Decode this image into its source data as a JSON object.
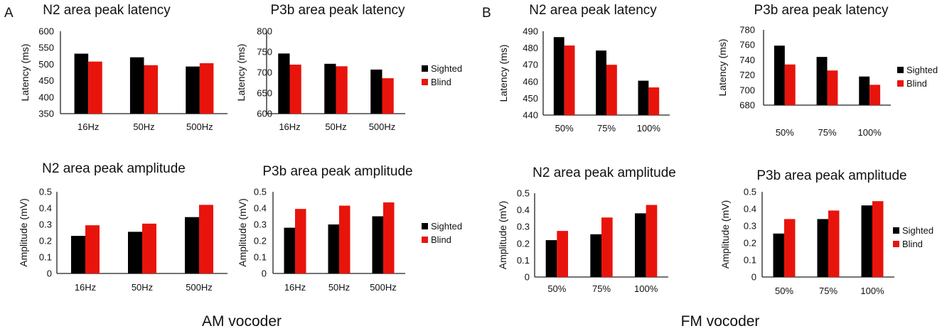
{
  "colors": {
    "sighted": "#000000",
    "blind": "#e8140c",
    "axis": "#222222"
  },
  "panel_labels": {
    "am": "A",
    "fm": "B"
  },
  "footers": {
    "am": "AM vocoder",
    "fm": "FM vocoder"
  },
  "legend_labels": {
    "sighted": "Sighted",
    "blind": "Blind"
  },
  "chart_data": [
    {
      "id": "am-n2-latency",
      "type": "bar",
      "title": "N2 area peak latency",
      "ylabel": "Latency (ms)",
      "xlabel": "",
      "categories": [
        "16Hz",
        "50Hz",
        "500Hz"
      ],
      "ylim": [
        350,
        600
      ],
      "yticks": [
        "350",
        "400",
        "450",
        "500",
        "550",
        "600"
      ],
      "series": [
        {
          "name": "Sighted",
          "values": [
            532,
            521,
            493
          ]
        },
        {
          "name": "Blind",
          "values": [
            508,
            497,
            503
          ]
        }
      ],
      "legend": false
    },
    {
      "id": "am-p3b-latency",
      "type": "bar",
      "title": "P3b area peak latency",
      "ylabel": "Latency (ms)",
      "xlabel": "",
      "categories": [
        "16Hz",
        "50Hz",
        "500Hz"
      ],
      "ylim": [
        600,
        800
      ],
      "yticks": [
        "600",
        "650",
        "700",
        "750",
        "800"
      ],
      "series": [
        {
          "name": "Sighted",
          "values": [
            746,
            721,
            707
          ]
        },
        {
          "name": "Blind",
          "values": [
            719,
            715,
            686
          ]
        }
      ],
      "legend": true
    },
    {
      "id": "fm-n2-latency",
      "type": "bar",
      "title": "N2 area peak latency",
      "ylabel": "Latency (ms)",
      "xlabel": "",
      "categories": [
        "50%",
        "75%",
        "100%"
      ],
      "ylim": [
        440,
        490
      ],
      "yticks": [
        "440",
        "450",
        "460",
        "470",
        "480",
        "490"
      ],
      "series": [
        {
          "name": "Sighted",
          "values": [
            486.5,
            478.5,
            460.5
          ]
        },
        {
          "name": "Blind",
          "values": [
            481.5,
            470,
            456.5
          ]
        }
      ],
      "legend": false
    },
    {
      "id": "fm-p3b-latency",
      "type": "bar",
      "title": "P3b area peak latency",
      "ylabel": "Latency (ms)",
      "xlabel": "",
      "categories": [
        "50%",
        "75%",
        "100%"
      ],
      "ylim": [
        680,
        780
      ],
      "yticks": [
        "680",
        "700",
        "720",
        "740",
        "760",
        "780"
      ],
      "series": [
        {
          "name": "Sighted",
          "values": [
            759,
            744,
            718
          ]
        },
        {
          "name": "Blind",
          "values": [
            734,
            726,
            707
          ]
        }
      ],
      "legend": true
    },
    {
      "id": "am-n2-amplitude",
      "type": "bar",
      "title": "N2 area peak amplitude",
      "ylabel": "Amplitude (mV)",
      "xlabel": "",
      "categories": [
        "16Hz",
        "50Hz",
        "500Hz"
      ],
      "ylim": [
        0,
        0.5
      ],
      "yticks": [
        "0",
        "0.1",
        "0.2",
        "0.3",
        "0.4",
        "0.5"
      ],
      "series": [
        {
          "name": "Sighted",
          "values": [
            0.23,
            0.255,
            0.345
          ]
        },
        {
          "name": "Blind",
          "values": [
            0.295,
            0.305,
            0.42
          ]
        }
      ],
      "legend": false
    },
    {
      "id": "am-p3b-amplitude",
      "type": "bar",
      "title": "P3b area peak amplitude",
      "ylabel": "Amplitude (mV)",
      "xlabel": "",
      "categories": [
        "16Hz",
        "50Hz",
        "500Hz"
      ],
      "ylim": [
        0,
        0.5
      ],
      "yticks": [
        "0",
        "0.1",
        "0.2",
        "0.3",
        "0.4",
        "0.5"
      ],
      "series": [
        {
          "name": "Sighted",
          "values": [
            0.28,
            0.3,
            0.35
          ]
        },
        {
          "name": "Blind",
          "values": [
            0.395,
            0.415,
            0.435
          ]
        }
      ],
      "legend": true
    },
    {
      "id": "fm-n2-amplitude",
      "type": "bar",
      "title": "N2 area peak amplitude",
      "ylabel": "Amplitude (mV)",
      "xlabel": "",
      "categories": [
        "50%",
        "75%",
        "100%"
      ],
      "ylim": [
        0,
        0.5
      ],
      "yticks": [
        "0",
        "0.1",
        "0.2",
        "0.3",
        "0.4",
        "0.5"
      ],
      "series": [
        {
          "name": "Sighted",
          "values": [
            0.22,
            0.255,
            0.38
          ]
        },
        {
          "name": "Blind",
          "values": [
            0.275,
            0.355,
            0.43
          ]
        }
      ],
      "legend": false
    },
    {
      "id": "fm-p3b-amplitude",
      "type": "bar",
      "title": "P3b area peak amplitude",
      "ylabel": "Amplitude (mV)",
      "xlabel": "",
      "categories": [
        "50%",
        "75%",
        "100%"
      ],
      "ylim": [
        0,
        0.5
      ],
      "yticks": [
        "0",
        "0.1",
        "0.2",
        "0.3",
        "0.4",
        "0.5"
      ],
      "series": [
        {
          "name": "Sighted",
          "values": [
            0.255,
            0.34,
            0.42
          ]
        },
        {
          "name": "Blind",
          "values": [
            0.34,
            0.39,
            0.445
          ]
        }
      ],
      "legend": true
    }
  ]
}
